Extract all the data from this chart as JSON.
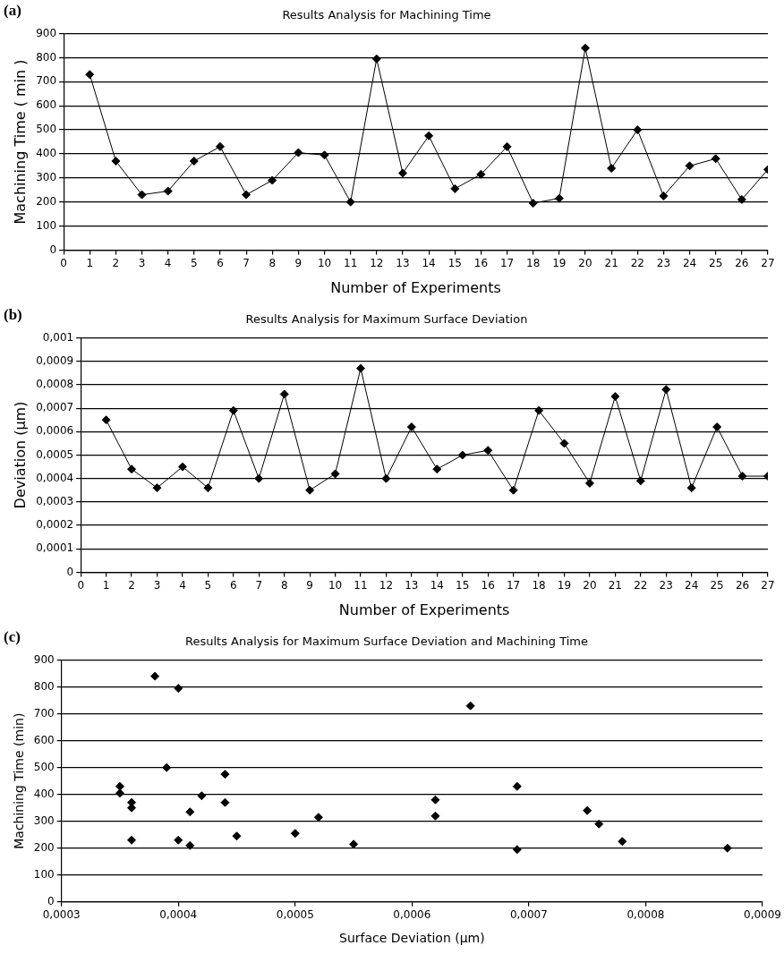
{
  "chart_data": [
    {
      "type": "line",
      "title": "Results Analysis for Machining Time",
      "xlabel": "Number of Experiments",
      "ylabel": "Machining Time ( min )",
      "annotations": [
        "(a)"
      ],
      "marker": "diamond",
      "line_style": "solid",
      "grid": "y",
      "x": [
        1,
        2,
        3,
        4,
        5,
        6,
        7,
        8,
        9,
        10,
        11,
        12,
        13,
        14,
        15,
        16,
        17,
        18,
        19,
        20,
        21,
        22,
        23,
        24,
        25,
        26,
        27
      ],
      "series": [
        {
          "color": "#000000",
          "values": [
            730,
            370,
            230,
            245,
            370,
            430,
            230,
            290,
            405,
            395,
            200,
            795,
            320,
            475,
            255,
            315,
            430,
            195,
            215,
            840,
            340,
            500,
            225,
            350,
            380,
            210,
            335
          ]
        }
      ],
      "xlim": [
        0,
        27
      ],
      "xticks": [
        0,
        1,
        2,
        3,
        4,
        5,
        6,
        7,
        8,
        9,
        10,
        11,
        12,
        13,
        14,
        15,
        16,
        17,
        18,
        19,
        20,
        21,
        22,
        23,
        24,
        25,
        26,
        27
      ],
      "ylim": [
        0,
        900
      ],
      "yticks": [
        0,
        100,
        200,
        300,
        400,
        500,
        600,
        700,
        800,
        900
      ]
    },
    {
      "type": "line",
      "title": "Results Analysis for Maximum Surface Deviation",
      "xlabel": "Number of Experiments",
      "ylabel": "Deviation (µm)",
      "annotations": [
        "(b)"
      ],
      "marker": "diamond",
      "line_style": "solid",
      "grid": "y",
      "x": [
        1,
        2,
        3,
        4,
        5,
        6,
        7,
        8,
        9,
        10,
        11,
        12,
        13,
        14,
        15,
        16,
        17,
        18,
        19,
        20,
        21,
        22,
        23,
        24,
        25,
        26,
        27
      ],
      "series": [
        {
          "color": "#000000",
          "values": [
            0.00065,
            0.00044,
            0.00036,
            0.00045,
            0.00036,
            0.00069,
            0.0004,
            0.00076,
            0.00035,
            0.00042,
            0.00087,
            0.0004,
            0.00062,
            0.00044,
            0.0005,
            0.00052,
            0.00035,
            0.00069,
            0.00055,
            0.00038,
            0.00075,
            0.00039,
            0.00078,
            0.00036,
            0.00062,
            0.00041,
            0.00041
          ]
        }
      ],
      "xlim": [
        0,
        27
      ],
      "xticks": [
        0,
        1,
        2,
        3,
        4,
        5,
        6,
        7,
        8,
        9,
        10,
        11,
        12,
        13,
        14,
        15,
        16,
        17,
        18,
        19,
        20,
        21,
        22,
        23,
        24,
        25,
        26,
        27
      ],
      "ylim": [
        0,
        0.001
      ],
      "yticks": [
        0,
        {
          "value": 0.0001,
          "label": "0,0001"
        },
        {
          "value": 0.0002,
          "label": "0,0002"
        },
        {
          "value": 0.0003,
          "label": "0,0003"
        },
        {
          "value": 0.0004,
          "label": "0,0004"
        },
        {
          "value": 0.0005,
          "label": "0,0005"
        },
        {
          "value": 0.0006,
          "label": "0,0006"
        },
        {
          "value": 0.0007,
          "label": "0,0007"
        },
        {
          "value": 0.0008,
          "label": "0,0008"
        },
        {
          "value": 0.0009,
          "label": "0,0009"
        },
        {
          "value": 0.001,
          "label": "0,001"
        }
      ]
    },
    {
      "type": "scatter",
      "title": "Results Analysis for Maximum Surface Deviation and Machining Time",
      "xlabel": "Surface Deviation (µm)",
      "ylabel": "Machining Time (min)",
      "annotations": [
        "(c)"
      ],
      "marker": "diamond",
      "grid": "y",
      "x": [
        0.00065,
        0.00044,
        0.00036,
        0.00045,
        0.00036,
        0.00069,
        0.0004,
        0.00076,
        0.00035,
        0.00042,
        0.00087,
        0.0004,
        0.00062,
        0.00044,
        0.0005,
        0.00052,
        0.00035,
        0.00069,
        0.00055,
        0.00038,
        0.00075,
        0.00039,
        0.00078,
        0.00036,
        0.00062,
        0.00041,
        0.00041
      ],
      "series": [
        {
          "color": "#000000",
          "values": [
            730,
            370,
            230,
            245,
            370,
            430,
            230,
            290,
            405,
            395,
            200,
            795,
            320,
            475,
            255,
            315,
            430,
            195,
            215,
            840,
            340,
            500,
            225,
            350,
            380,
            210,
            335
          ]
        }
      ],
      "xlim": [
        0.0003,
        0.0009
      ],
      "xticks": [
        {
          "value": 0.0003,
          "label": "0,0003"
        },
        {
          "value": 0.0004,
          "label": "0,0004"
        },
        {
          "value": 0.0005,
          "label": "0,0005"
        },
        {
          "value": 0.0006,
          "label": "0,0006"
        },
        {
          "value": 0.0007,
          "label": "0,0007"
        },
        {
          "value": 0.0008,
          "label": "0,0008"
        },
        {
          "value": 0.0009,
          "label": "0,0009"
        }
      ],
      "ylim": [
        0,
        900
      ],
      "yticks": [
        0,
        100,
        200,
        300,
        400,
        500,
        600,
        700,
        800,
        900
      ]
    }
  ]
}
